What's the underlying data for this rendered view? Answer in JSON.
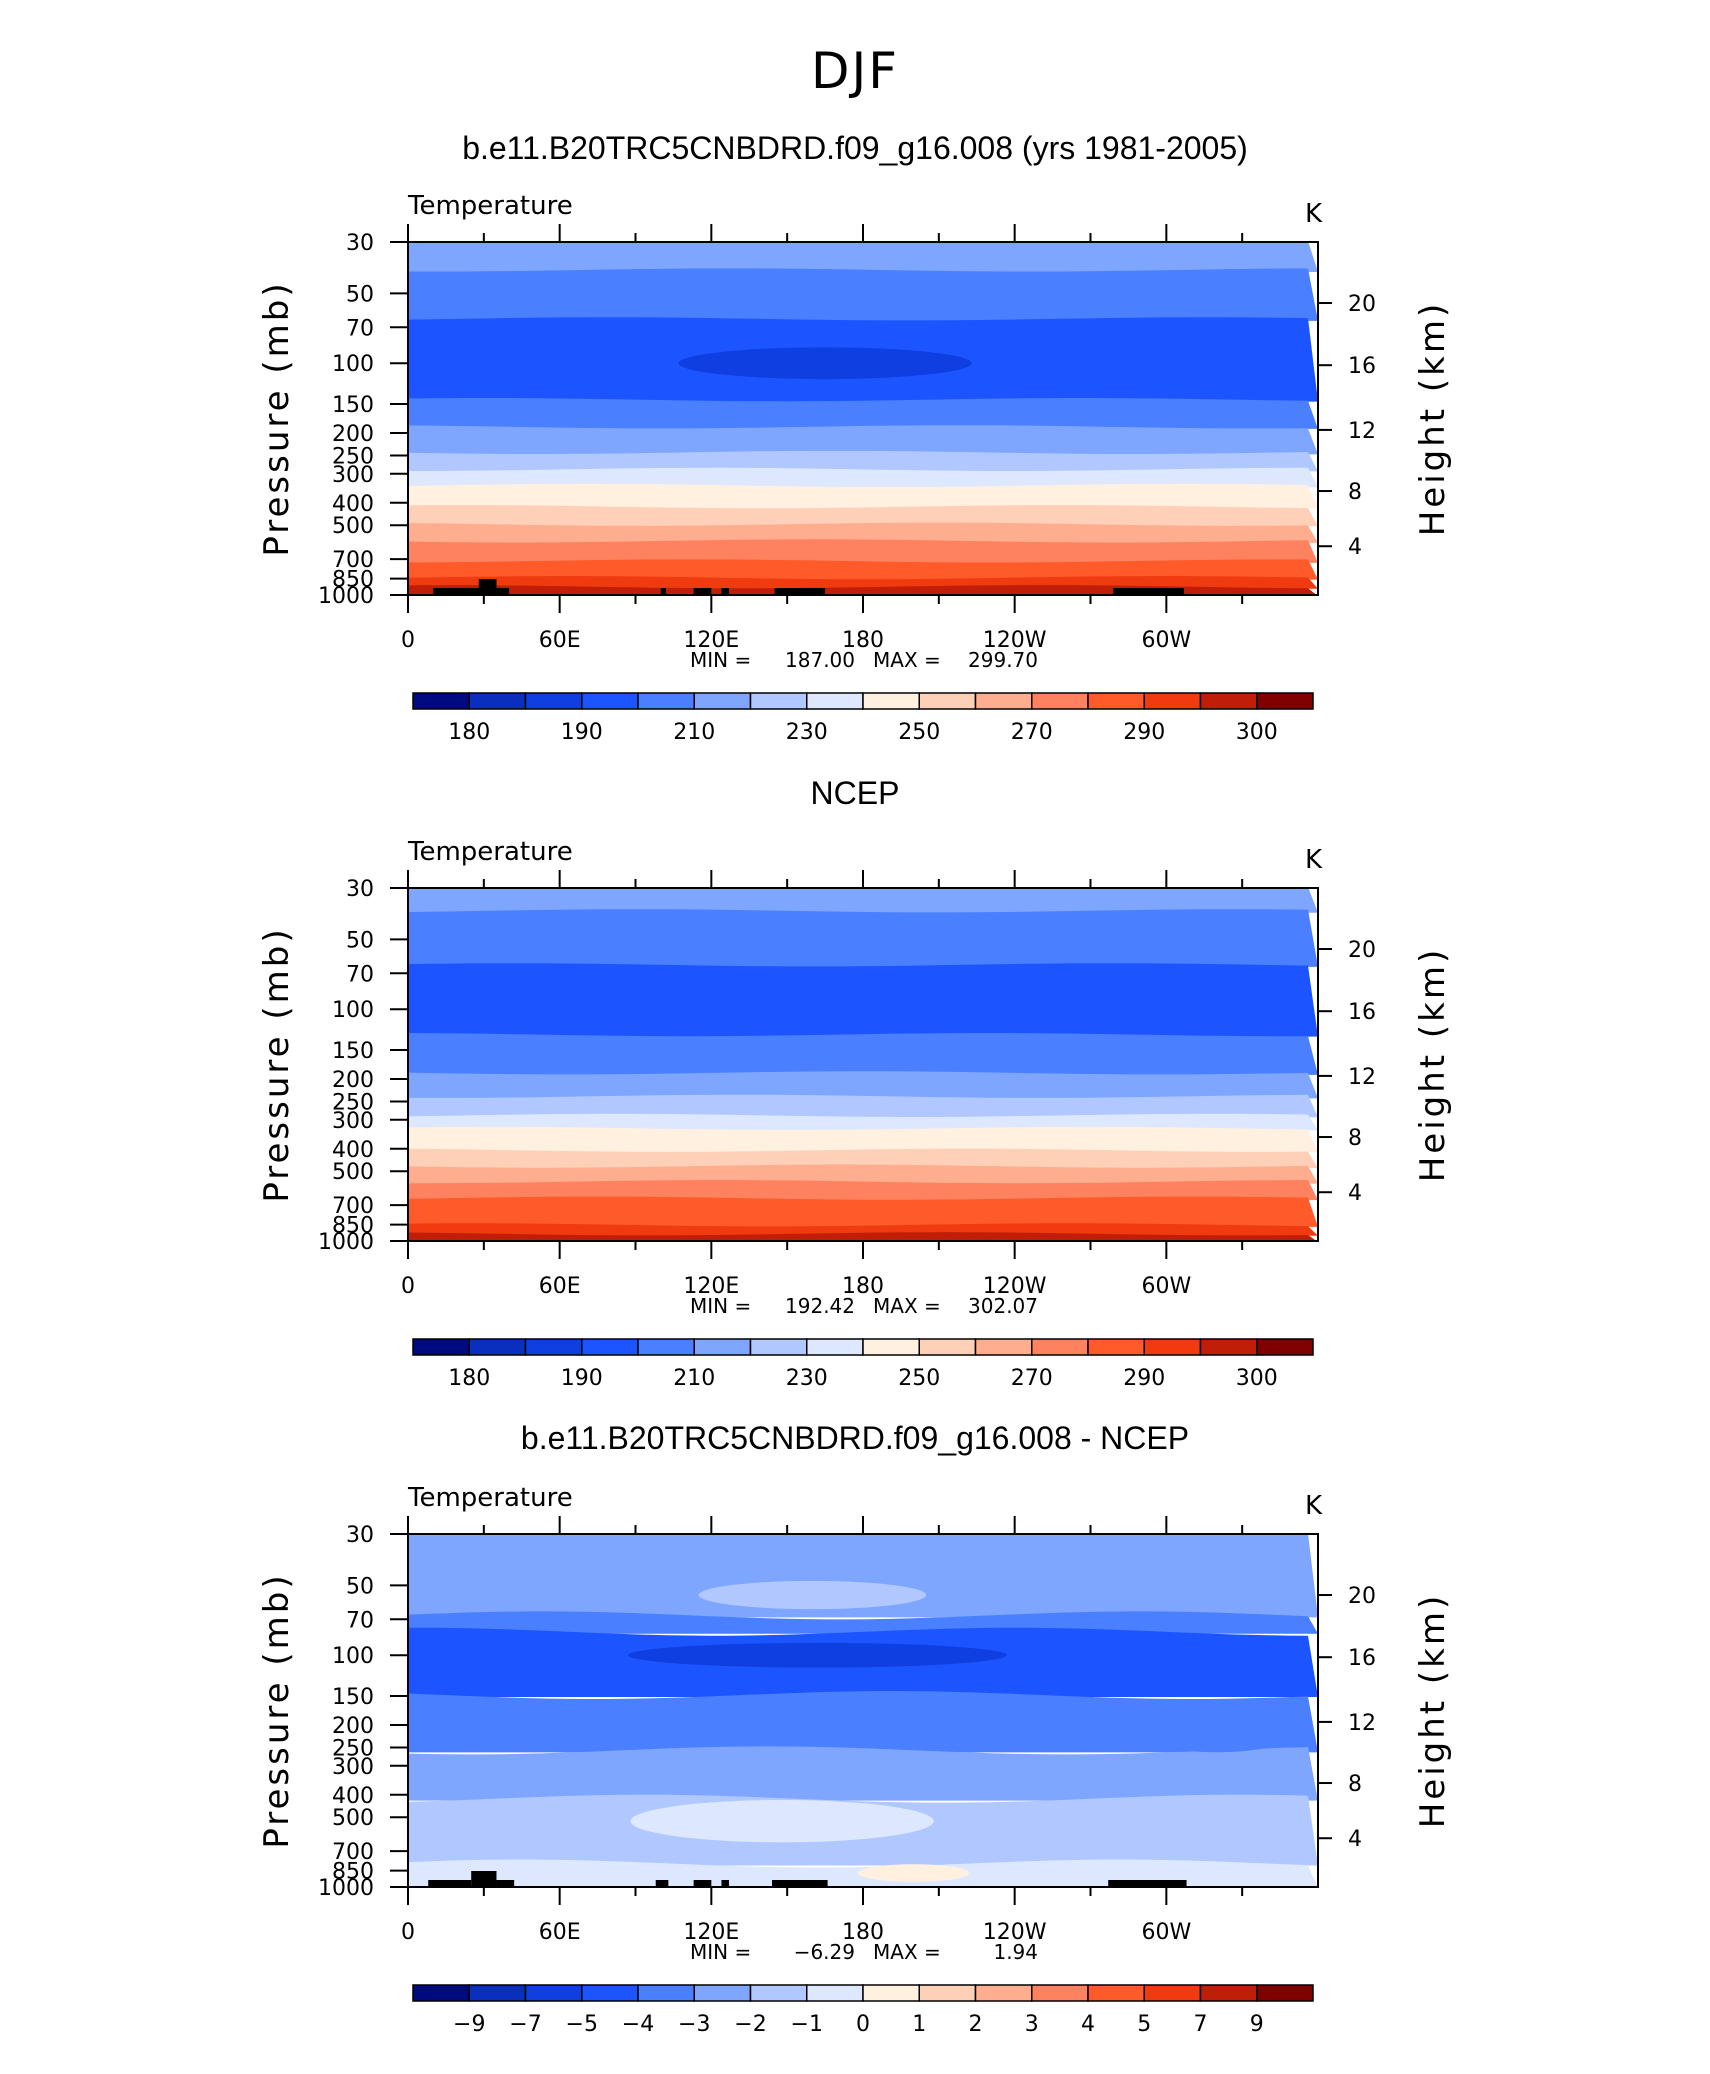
{
  "main_title": "DJF",
  "chart_data": [
    {
      "type": "heatmap",
      "title": "b.e11.B20TRC5CNBDRD.f09_g16.008 (yrs 1981-2005)",
      "subtitle_left": "Temperature",
      "units": "K",
      "ylabel": "Pressure (mb)",
      "y2label": "Height (km)",
      "x_ticks": [
        "0",
        "60E",
        "120E",
        "180",
        "120W",
        "60W"
      ],
      "y_ticks": [
        "30",
        "50",
        "70",
        "100",
        "150",
        "200",
        "250",
        "300",
        "400",
        "500",
        "700",
        "850",
        "1000"
      ],
      "y2_ticks": [
        "20",
        "16",
        "12",
        "8",
        "4"
      ],
      "min_label": "MIN =",
      "min_value": "187.00",
      "max_label": "MAX =",
      "max_value": "299.70",
      "colorbar_labels": [
        "180",
        "190",
        "210",
        "230",
        "250",
        "270",
        "290",
        "300"
      ],
      "colorbar_colors": [
        "#000a80",
        "#0a2fbf",
        "#0f3fe0",
        "#1c55ff",
        "#4a7fff",
        "#7ea6ff",
        "#b0c8ff",
        "#dde8ff",
        "#fff0e0",
        "#ffd0b8",
        "#ffad8f",
        "#ff8260",
        "#ff5a2a",
        "#f03a10",
        "#c01e08",
        "#800000"
      ],
      "bands": [
        {
          "level": "30",
          "color": "#7ea6ff"
        },
        {
          "level": "40",
          "color": "#4a7fff"
        },
        {
          "level": "65",
          "color": "#1c55ff"
        },
        {
          "level": "145",
          "color": "#4a7fff"
        },
        {
          "level": "190",
          "color": "#7ea6ff"
        },
        {
          "level": "245",
          "color": "#b0c8ff"
        },
        {
          "level": "290",
          "color": "#dde8ff"
        },
        {
          "level": "340",
          "color": "#fff0e0"
        },
        {
          "level": "420",
          "color": "#ffd0b8"
        },
        {
          "level": "500",
          "color": "#ffad8f"
        },
        {
          "level": "590",
          "color": "#ff8260"
        },
        {
          "level": "720",
          "color": "#ff5a2a"
        },
        {
          "level": "850",
          "color": "#f03a10"
        },
        {
          "level": "930",
          "color": "#c01e08"
        }
      ],
      "features": [
        {
          "type": "ellipse",
          "lon": 165,
          "level": "100",
          "rx": 58,
          "ry": 4.5,
          "color": "#0f3fe0"
        }
      ],
      "topography": [
        [
          10,
          30
        ],
        [
          28,
          35
        ],
        [
          35,
          40
        ],
        [
          100,
          102
        ],
        [
          113,
          120
        ],
        [
          124,
          127
        ],
        [
          145,
          165
        ],
        [
          279,
          307
        ]
      ]
    },
    {
      "type": "heatmap",
      "title": "NCEP",
      "subtitle_left": "Temperature",
      "units": "K",
      "ylabel": "Pressure (mb)",
      "y2label": "Height (km)",
      "x_ticks": [
        "0",
        "60E",
        "120E",
        "180",
        "120W",
        "60W"
      ],
      "y_ticks": [
        "30",
        "50",
        "70",
        "100",
        "150",
        "200",
        "250",
        "300",
        "400",
        "500",
        "700",
        "850",
        "1000"
      ],
      "y2_ticks": [
        "20",
        "16",
        "12",
        "8",
        "4"
      ],
      "min_label": "MIN =",
      "min_value": "192.42",
      "max_label": "MAX =",
      "max_value": "302.07",
      "colorbar_labels": [
        "180",
        "190",
        "210",
        "230",
        "250",
        "270",
        "290",
        "300"
      ],
      "colorbar_colors": [
        "#000a80",
        "#0a2fbf",
        "#0f3fe0",
        "#1c55ff",
        "#4a7fff",
        "#7ea6ff",
        "#b0c8ff",
        "#dde8ff",
        "#fff0e0",
        "#ffd0b8",
        "#ffad8f",
        "#ff8260",
        "#ff5a2a",
        "#f03a10",
        "#c01e08",
        "#800000"
      ],
      "bands": [
        {
          "level": "30",
          "color": "#7ea6ff"
        },
        {
          "level": "38",
          "color": "#4a7fff"
        },
        {
          "level": "65",
          "color": "#1c55ff"
        },
        {
          "level": "130",
          "color": "#4a7fff"
        },
        {
          "level": "190",
          "color": "#7ea6ff"
        },
        {
          "level": "240",
          "color": "#b0c8ff"
        },
        {
          "level": "290",
          "color": "#dde8ff"
        },
        {
          "level": "330",
          "color": "#fff0e0"
        },
        {
          "level": "410",
          "color": "#ffd0b8"
        },
        {
          "level": "480",
          "color": "#ffad8f"
        },
        {
          "level": "560",
          "color": "#ff8260"
        },
        {
          "level": "660",
          "color": "#ff5a2a"
        },
        {
          "level": "860",
          "color": "#f03a10"
        },
        {
          "level": "940",
          "color": "#c01e08"
        }
      ],
      "features": [],
      "topography": []
    },
    {
      "type": "heatmap",
      "title": "b.e11.B20TRC5CNBDRD.f09_g16.008 - NCEP",
      "subtitle_left": "Temperature",
      "units": "K",
      "ylabel": "Pressure (mb)",
      "y2label": "Height (km)",
      "x_ticks": [
        "0",
        "60E",
        "120E",
        "180",
        "120W",
        "60W"
      ],
      "y_ticks": [
        "30",
        "50",
        "70",
        "100",
        "150",
        "200",
        "250",
        "300",
        "400",
        "500",
        "700",
        "850",
        "1000"
      ],
      "y2_ticks": [
        "20",
        "16",
        "12",
        "8",
        "4"
      ],
      "min_label": "MIN =",
      "min_value": "−6.29",
      "max_label": "MAX =",
      "max_value": "1.94",
      "colorbar_labels": [
        "−9",
        "−7",
        "−5",
        "−4",
        "−3",
        "−2",
        "−1",
        "0",
        "1",
        "2",
        "3",
        "4",
        "5",
        "7",
        "9"
      ],
      "colorbar_colors": [
        "#000a80",
        "#0a2fbf",
        "#0f3fe0",
        "#1c55ff",
        "#4a7fff",
        "#7ea6ff",
        "#b0c8ff",
        "#dde8ff",
        "#fff0e0",
        "#ffd0b8",
        "#ffad8f",
        "#ff8260",
        "#ff5a2a",
        "#f03a10",
        "#c01e08",
        "#800000"
      ],
      "bands": [
        {
          "level": "30",
          "color": "#7ea6ff"
        },
        {
          "level": "68",
          "color": "#4a7fff"
        },
        {
          "level": "80",
          "color": "#1c55ff"
        },
        {
          "level": "150",
          "color": "#4a7fff"
        },
        {
          "level": "260",
          "color": "#7ea6ff"
        },
        {
          "level": "420",
          "color": "#b0c8ff"
        },
        {
          "level": "800",
          "color": "#dde8ff"
        }
      ],
      "features": [
        {
          "type": "ellipse",
          "lon": 162,
          "level": "100",
          "rx": 75,
          "ry": 3.5,
          "color": "#0f3fe0"
        },
        {
          "type": "ellipse",
          "lon": 160,
          "level": "55",
          "rx": 45,
          "ry": 4,
          "color": "#b0c8ff"
        },
        {
          "type": "ellipse",
          "lon": 148,
          "level": "520",
          "rx": 60,
          "ry": 6,
          "color": "#dde8ff"
        },
        {
          "type": "ellipse",
          "lon": 200,
          "level": "870",
          "rx": 22,
          "ry": 2.5,
          "color": "#fff0e0"
        },
        {
          "type": "ellipse",
          "lon": 320,
          "level": "220",
          "rx": 30,
          "ry": 5,
          "color": "#4a7fff"
        }
      ],
      "topography": [
        [
          8,
          25
        ],
        [
          25,
          35
        ],
        [
          35,
          42
        ],
        [
          98,
          103
        ],
        [
          113,
          120
        ],
        [
          124,
          127
        ],
        [
          144,
          166
        ],
        [
          277,
          308
        ]
      ]
    }
  ]
}
